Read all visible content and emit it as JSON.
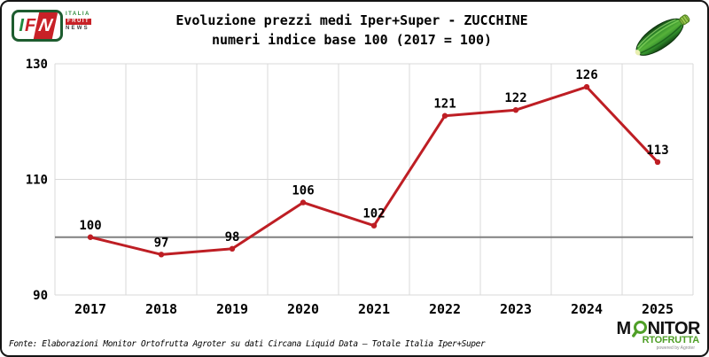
{
  "chart_data": {
    "type": "line",
    "title": "Evoluzione prezzi medi Iper+Super - ZUCCHINE",
    "subtitle": "numeri indice base 100 (2017 = 100)",
    "categories": [
      "2017",
      "2018",
      "2019",
      "2020",
      "2021",
      "2022",
      "2023",
      "2024",
      "2025"
    ],
    "values": [
      100,
      97,
      98,
      106,
      102,
      121,
      122,
      126,
      113
    ],
    "ylim": [
      90,
      130
    ],
    "yticks": [
      130,
      110,
      90
    ],
    "reference_line": 100,
    "line_color": "#BE1E24",
    "grid": true,
    "grid_color": "#D9D9D9",
    "reference_line_color": "#808080",
    "label_color": "#000000",
    "legend": "none"
  },
  "branding": {
    "ifn": {
      "i": "I",
      "f": "F",
      "n": "N",
      "italia": "ITALIA",
      "fruit": "FRUIT",
      "news": "NEWS"
    },
    "monitor": {
      "m": "M",
      "nitor": "NITOR",
      "rtofrutta": "RTOFRUTTA",
      "powered": "powered by Agroter"
    }
  },
  "icons": {
    "zucchini": "zucchini-icon",
    "magnifier": "magnifier-icon"
  },
  "footer": {
    "source": "Fonte: Elaborazioni Monitor Ortofrutta Agroter su dati Circana Liquid Data – Totale Italia Iper+Super"
  }
}
